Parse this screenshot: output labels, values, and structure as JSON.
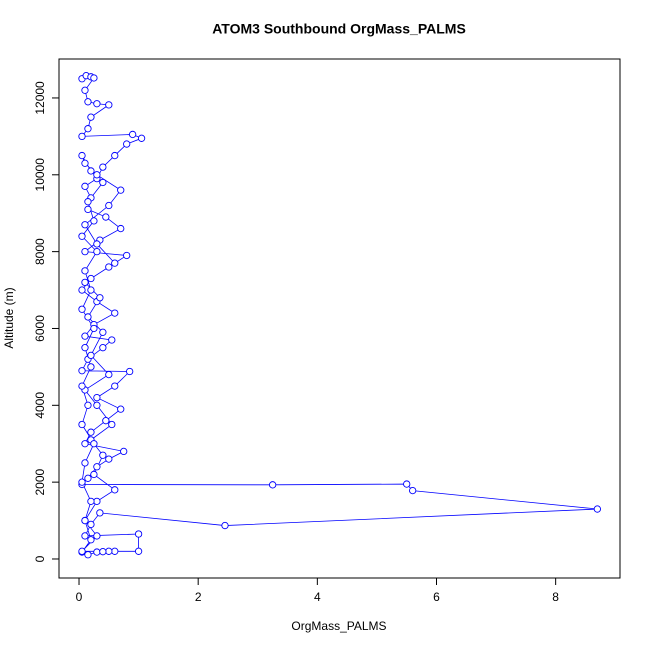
{
  "chart_data": {
    "type": "line",
    "title": "ATOM3 Southbound OrgMass_PALMS",
    "xlabel": "OrgMass_PALMS",
    "ylabel": "Altitude (m)",
    "xlim": [
      -0.336,
      9.08
    ],
    "ylim": [
      -495,
      13014
    ],
    "xticks": [
      0,
      2,
      4,
      6,
      8
    ],
    "yticks": [
      0,
      2000,
      4000,
      6000,
      8000,
      10000,
      12000
    ],
    "x": [
      0.05,
      0.12,
      0.2,
      0.25,
      0.1,
      0.15,
      0.3,
      0.5,
      0.2,
      0.15,
      0.05,
      0.9,
      1.05,
      0.8,
      0.6,
      0.4,
      0.3,
      0.1,
      0.2,
      0.15,
      0.45,
      0.7,
      0.35,
      0.1,
      0.8,
      0.5,
      0.2,
      0.05,
      0.3,
      0.6,
      0.25,
      0.1,
      0.55,
      0.4,
      0.15,
      0.05,
      0.85,
      0.6,
      0.3,
      0.7,
      0.45,
      0.2,
      0.1,
      0.75,
      0.5,
      0.3,
      0.15,
      0.05,
      3.25,
      5.5,
      5.6,
      8.7,
      2.45,
      0.35,
      0.2,
      0.1,
      1.0,
      1.0,
      0.6,
      0.3,
      0.15,
      0.05,
      0.2,
      0.1,
      0.3,
      0.6,
      0.25,
      0.4,
      0.2,
      0.55,
      0.3,
      0.1,
      0.5,
      0.2,
      0.4,
      0.15,
      0.35,
      0.1,
      0.6,
      0.3,
      0.1,
      0.5,
      0.7,
      0.3,
      0.1,
      0.05,
      0.2,
      0.4,
      0.15,
      0.25,
      0.05,
      0.3,
      0.1,
      0.2,
      0.05,
      0.25,
      0.1,
      0.2,
      0.05,
      0.15,
      0.05,
      0.25,
      0.1,
      0.05,
      0.2,
      0.1,
      0.3,
      0.05,
      0.5,
      0.4
    ],
    "series": [
      {
        "name": "Altitude",
        "color": "#0000ff",
        "values": [
          12500,
          12580,
          12550,
          12520,
          12200,
          11900,
          11850,
          11820,
          11500,
          11200,
          11000,
          11050,
          10950,
          10800,
          10500,
          10200,
          9900,
          9700,
          9400,
          9100,
          8900,
          8600,
          8300,
          8000,
          7900,
          7600,
          7300,
          7000,
          6700,
          6400,
          6100,
          5800,
          5700,
          5500,
          5200,
          4900,
          4880,
          4500,
          4200,
          3900,
          3600,
          3300,
          3000,
          2800,
          2600,
          2400,
          2100,
          1940,
          1930,
          1950,
          1780,
          1300,
          870,
          1200,
          900,
          600,
          650,
          200,
          200,
          180,
          110,
          180,
          500,
          1000,
          1500,
          1800,
          2200,
          2700,
          3100,
          3500,
          4000,
          4400,
          4800,
          5300,
          5900,
          6300,
          6800,
          7200,
          7700,
          8200,
          8700,
          9200,
          9600,
          10000,
          10300,
          10500,
          10100,
          9800,
          9300,
          8800,
          8400,
          8000,
          7500,
          7000,
          6500,
          6000,
          5500,
          5000,
          4500,
          4000,
          3500,
          3000,
          2500,
          2000,
          1500,
          1000,
          600,
          200,
          200,
          190
        ]
      }
    ]
  }
}
